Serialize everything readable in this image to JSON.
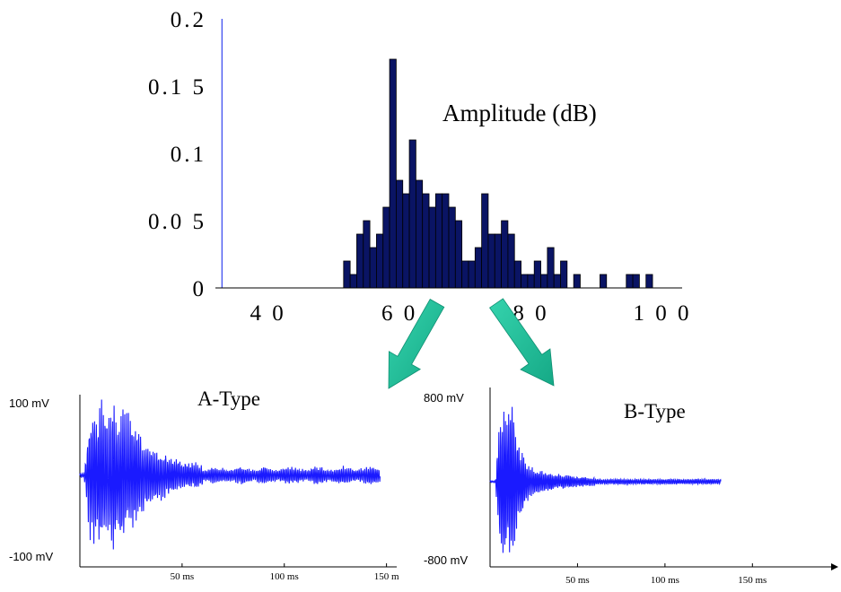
{
  "chart_data": [
    {
      "type": "bar",
      "title": "Amplitude (dB)",
      "xlim": [
        32,
        103
      ],
      "ylim": [
        0,
        0.2
      ],
      "x_ticks": [
        "4 0",
        "6 0",
        "8 0",
        "1 0 0"
      ],
      "x_tick_values": [
        40,
        60,
        80,
        100
      ],
      "y_ticks": [
        "0",
        "0.0 5",
        "0.1",
        "0.1 5",
        "0.2"
      ],
      "y_tick_values": [
        0,
        0.05,
        0.1,
        0.15,
        0.2
      ],
      "marker_line_x": 33,
      "marker_line_color": "#3344ee",
      "bar_color": "#0a1464",
      "x": [
        52,
        53,
        54,
        55,
        56,
        57,
        58,
        59,
        60,
        61,
        62,
        63,
        64,
        65,
        66,
        67,
        68,
        69,
        70,
        71,
        72,
        73,
        74,
        75,
        76,
        77,
        78,
        79,
        80,
        81,
        82,
        83,
        84,
        85,
        86,
        87,
        88,
        89,
        90,
        91,
        92,
        93,
        94,
        95,
        96,
        97,
        98
      ],
      "values": [
        0.02,
        0.01,
        0.04,
        0.05,
        0.03,
        0.04,
        0.06,
        0.17,
        0.08,
        0.07,
        0.11,
        0.08,
        0.07,
        0.06,
        0.07,
        0.07,
        0.06,
        0.05,
        0.02,
        0.02,
        0.03,
        0.07,
        0.04,
        0.04,
        0.05,
        0.04,
        0.02,
        0.01,
        0.01,
        0.02,
        0.01,
        0.03,
        0.01,
        0.02,
        0,
        0.01,
        0,
        0,
        0,
        0.01,
        0,
        0,
        0,
        0.01,
        0.01,
        0,
        0.01
      ]
    },
    {
      "type": "line",
      "title": "A-Type",
      "ylabel_top": "100 mV",
      "ylabel_bottom": "-100 mV",
      "ylim": [
        -100,
        100
      ],
      "xlim": [
        0,
        155
      ],
      "x_ticks": [
        "50 ms",
        "100 ms",
        "150 m"
      ],
      "x_tick_values": [
        50,
        100,
        150
      ],
      "signal_end_ms": 147,
      "color": "#1a1aff"
    },
    {
      "type": "line",
      "title": "B-Type",
      "ylabel_top": "800 mV",
      "ylabel_bottom": "-800 mV",
      "ylim": [
        -800,
        800
      ],
      "xlim": [
        0,
        195
      ],
      "x_ticks": [
        "50 ms",
        "100 ms",
        "150 ms"
      ],
      "x_tick_values": [
        50,
        100,
        150
      ],
      "signal_end_ms": 132,
      "color": "#1a1aff"
    }
  ],
  "arrow_color": "#1fc19a"
}
